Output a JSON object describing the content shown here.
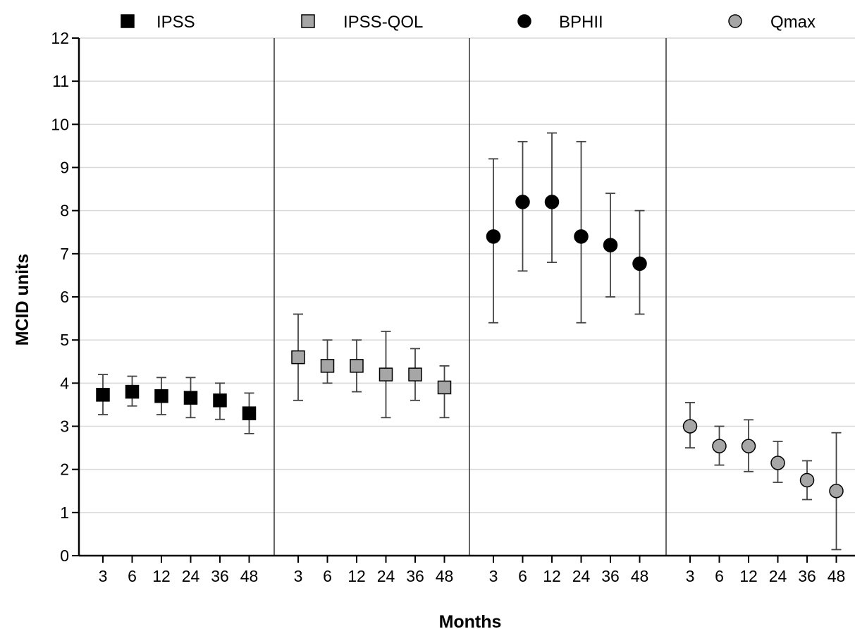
{
  "chart_data": {
    "type": "scatter",
    "xlabel": "Months",
    "ylabel": "MCID units",
    "ylim": [
      0,
      12
    ],
    "yticks": [
      0,
      1,
      2,
      3,
      4,
      5,
      6,
      7,
      8,
      9,
      10,
      11,
      12
    ],
    "grid": true,
    "legend_position": "top",
    "categories": [
      "3",
      "6",
      "12",
      "24",
      "36",
      "48"
    ],
    "series": [
      {
        "name": "IPSS",
        "marker": "square",
        "color": "#000000",
        "values": [
          3.73,
          3.8,
          3.7,
          3.66,
          3.6,
          3.3
        ],
        "error_low": [
          3.27,
          3.47,
          3.27,
          3.2,
          3.16,
          2.83
        ],
        "error_high": [
          4.2,
          4.16,
          4.13,
          4.13,
          4.0,
          3.77
        ]
      },
      {
        "name": "IPSS-QOL",
        "marker": "square",
        "color": "#a6a6a6",
        "values": [
          4.6,
          4.4,
          4.4,
          4.2,
          4.2,
          3.9
        ],
        "error_low": [
          3.6,
          4.0,
          3.8,
          3.2,
          3.6,
          3.2
        ],
        "error_high": [
          5.6,
          5.0,
          5.0,
          5.2,
          4.8,
          4.4
        ]
      },
      {
        "name": "BPHII",
        "marker": "circle",
        "color": "#000000",
        "values": [
          7.4,
          8.2,
          8.2,
          7.4,
          7.2,
          6.77
        ],
        "error_low": [
          5.4,
          6.6,
          6.8,
          5.4,
          6.0,
          5.6
        ],
        "error_high": [
          9.2,
          9.6,
          9.8,
          9.6,
          8.4,
          8.0
        ]
      },
      {
        "name": "Qmax",
        "marker": "circle",
        "color": "#a6a6a6",
        "values": [
          3.0,
          2.54,
          2.54,
          2.15,
          1.75,
          1.5
        ],
        "error_low": [
          2.5,
          2.1,
          1.95,
          1.7,
          1.3,
          0.14
        ],
        "error_high": [
          3.55,
          3.0,
          3.15,
          2.65,
          2.2,
          2.85
        ]
      }
    ]
  }
}
